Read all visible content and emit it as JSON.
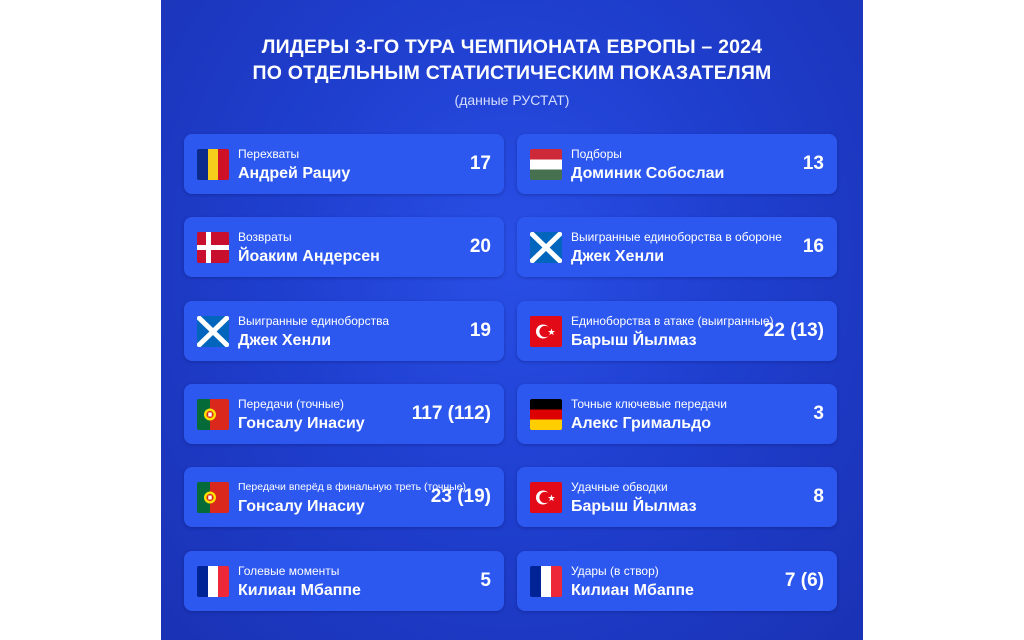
{
  "header": {
    "title_line1": "ЛИДЕРЫ 3-ГО ТУРА ЧЕМПИОНАТА ЕВРОПЫ – 2024",
    "title_line2": "ПО ОТДЕЛЬНЫМ СТАТИСТИЧЕСКИМ ПОКАЗАТЕЛЯМ",
    "subtitle": "(данные РУСТАТ)"
  },
  "left": [
    {
      "stat": "Перехваты",
      "player": "Андрей Рациу",
      "value": "17",
      "flag": "romania"
    },
    {
      "stat": "Возвраты",
      "player": "Йоаким Андерсен",
      "value": "20",
      "flag": "denmark"
    },
    {
      "stat": "Выигранные единоборства",
      "player": "Джек Хенли",
      "value": "19",
      "flag": "scotland"
    },
    {
      "stat": "Передачи (точные)",
      "player": "Гонсалу Инасиу",
      "value": "117 (112)",
      "flag": "portugal"
    },
    {
      "stat": "Передачи вперёд в финальную треть (точные)",
      "player": "Гонсалу Инасиу",
      "value": "23 (19)",
      "flag": "portugal"
    },
    {
      "stat": "Голевые моменты",
      "player": "Килиан Мбаппе",
      "value": "5",
      "flag": "france"
    }
  ],
  "right": [
    {
      "stat": "Подборы",
      "player": "Доминик Собослаи",
      "value": "13",
      "flag": "hungary"
    },
    {
      "stat": "Выигранные единоборства в обороне",
      "player": "Джек Хенли",
      "value": "16",
      "flag": "scotland"
    },
    {
      "stat": "Единоборства в атаке (выигранные)",
      "player": "Барыш Йылмаз",
      "value": "22 (13)",
      "flag": "turkey"
    },
    {
      "stat": "Точные ключевые передачи",
      "player": "Алекс Гримальдо",
      "value": "3",
      "flag": "germany"
    },
    {
      "stat": "Удачные обводки",
      "player": "Барыш Йылмаз",
      "value": "8",
      "flag": "turkey"
    },
    {
      "stat": "Удары (в створ)",
      "player": "Килиан Мбаппе",
      "value": "7 (6)",
      "flag": "france"
    }
  ],
  "colors": {
    "background": "#1f3fcf",
    "card": "#2d58ef",
    "text": "#ffffff"
  }
}
